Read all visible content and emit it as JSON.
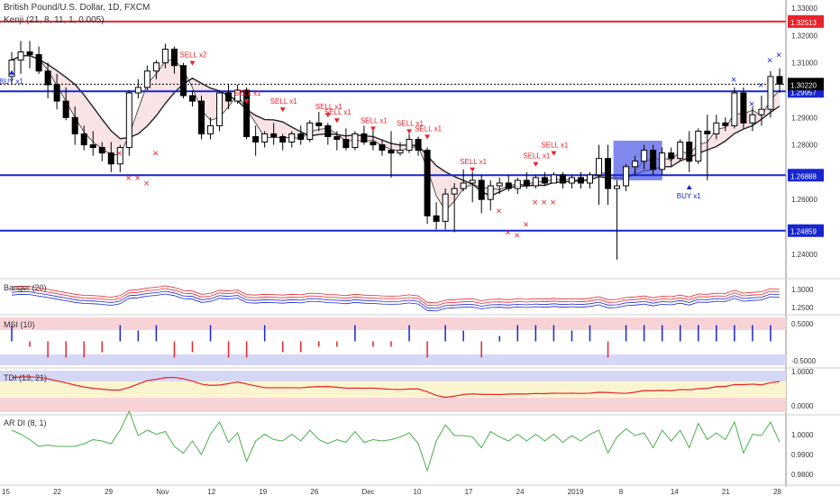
{
  "header": {
    "title": "British Pound/U.S. Dollar, 1D, FXCM",
    "indicator": "Kenji (21, 8, 11, 1, 0.005)"
  },
  "chart_data": {
    "type": "candlestick",
    "price_axis": {
      "ticks": [
        "1.33000",
        "1.32000",
        "1.31000",
        "1.29000",
        "1.28000",
        "1.26000",
        "1.24000"
      ],
      "range": [
        1.232,
        1.333
      ]
    },
    "current_price": "1.30220",
    "horizontal_lines": [
      {
        "label": "1.32513",
        "value": 1.32513,
        "color": "#e8232b"
      },
      {
        "label": "1.29957",
        "value": 1.29957,
        "color": "#1726cf"
      },
      {
        "label": "1.26888",
        "value": 1.26888,
        "color": "#1726cf"
      },
      {
        "label": "1.24859",
        "value": 1.24859,
        "color": "#1726cf"
      }
    ],
    "x_axis_labels": [
      "15",
      "22",
      "29",
      "Nov",
      "12",
      "19",
      "26",
      "Dec",
      "10",
      "17",
      "24",
      "2019",
      "8",
      "14",
      "21",
      "28"
    ],
    "candles": [
      {
        "o": 1.305,
        "h": 1.314,
        "l": 1.302,
        "c": 1.311
      },
      {
        "o": 1.311,
        "h": 1.318,
        "l": 1.306,
        "c": 1.314
      },
      {
        "o": 1.314,
        "h": 1.318,
        "l": 1.308,
        "c": 1.313
      },
      {
        "o": 1.313,
        "h": 1.316,
        "l": 1.306,
        "c": 1.307
      },
      {
        "o": 1.307,
        "h": 1.31,
        "l": 1.297,
        "c": 1.302
      },
      {
        "o": 1.302,
        "h": 1.306,
        "l": 1.293,
        "c": 1.296
      },
      {
        "o": 1.296,
        "h": 1.301,
        "l": 1.289,
        "c": 1.29
      },
      {
        "o": 1.29,
        "h": 1.294,
        "l": 1.28,
        "c": 1.284
      },
      {
        "o": 1.284,
        "h": 1.287,
        "l": 1.278,
        "c": 1.28
      },
      {
        "o": 1.28,
        "h": 1.285,
        "l": 1.276,
        "c": 1.279
      },
      {
        "o": 1.279,
        "h": 1.281,
        "l": 1.274,
        "c": 1.277
      },
      {
        "o": 1.277,
        "h": 1.281,
        "l": 1.27,
        "c": 1.273
      },
      {
        "o": 1.273,
        "h": 1.28,
        "l": 1.27,
        "c": 1.279
      },
      {
        "o": 1.279,
        "h": 1.3,
        "l": 1.276,
        "c": 1.299
      },
      {
        "o": 1.299,
        "h": 1.304,
        "l": 1.297,
        "c": 1.301
      },
      {
        "o": 1.301,
        "h": 1.309,
        "l": 1.3,
        "c": 1.307
      },
      {
        "o": 1.307,
        "h": 1.311,
        "l": 1.304,
        "c": 1.31
      },
      {
        "o": 1.31,
        "h": 1.317,
        "l": 1.308,
        "c": 1.315
      },
      {
        "o": 1.315,
        "h": 1.316,
        "l": 1.306,
        "c": 1.309
      },
      {
        "o": 1.309,
        "h": 1.31,
        "l": 1.297,
        "c": 1.298
      },
      {
        "o": 1.298,
        "h": 1.3,
        "l": 1.294,
        "c": 1.296
      },
      {
        "o": 1.296,
        "h": 1.298,
        "l": 1.282,
        "c": 1.284
      },
      {
        "o": 1.284,
        "h": 1.29,
        "l": 1.282,
        "c": 1.287
      },
      {
        "o": 1.287,
        "h": 1.3,
        "l": 1.285,
        "c": 1.299
      },
      {
        "o": 1.299,
        "h": 1.302,
        "l": 1.293,
        "c": 1.296
      },
      {
        "o": 1.296,
        "h": 1.302,
        "l": 1.295,
        "c": 1.3
      },
      {
        "o": 1.3,
        "h": 1.301,
        "l": 1.282,
        "c": 1.283
      },
      {
        "o": 1.283,
        "h": 1.287,
        "l": 1.276,
        "c": 1.281
      },
      {
        "o": 1.281,
        "h": 1.285,
        "l": 1.279,
        "c": 1.284
      },
      {
        "o": 1.284,
        "h": 1.288,
        "l": 1.28,
        "c": 1.283
      },
      {
        "o": 1.283,
        "h": 1.284,
        "l": 1.278,
        "c": 1.281
      },
      {
        "o": 1.281,
        "h": 1.285,
        "l": 1.279,
        "c": 1.284
      },
      {
        "o": 1.284,
        "h": 1.287,
        "l": 1.28,
        "c": 1.282
      },
      {
        "o": 1.282,
        "h": 1.289,
        "l": 1.281,
        "c": 1.288
      },
      {
        "o": 1.288,
        "h": 1.292,
        "l": 1.285,
        "c": 1.287
      },
      {
        "o": 1.287,
        "h": 1.288,
        "l": 1.28,
        "c": 1.283
      },
      {
        "o": 1.283,
        "h": 1.285,
        "l": 1.278,
        "c": 1.282
      },
      {
        "o": 1.282,
        "h": 1.286,
        "l": 1.278,
        "c": 1.279
      },
      {
        "o": 1.279,
        "h": 1.285,
        "l": 1.278,
        "c": 1.284
      },
      {
        "o": 1.284,
        "h": 1.287,
        "l": 1.28,
        "c": 1.281
      },
      {
        "o": 1.281,
        "h": 1.286,
        "l": 1.278,
        "c": 1.28
      },
      {
        "o": 1.28,
        "h": 1.282,
        "l": 1.276,
        "c": 1.278
      },
      {
        "o": 1.278,
        "h": 1.285,
        "l": 1.268,
        "c": 1.277
      },
      {
        "o": 1.277,
        "h": 1.281,
        "l": 1.276,
        "c": 1.278
      },
      {
        "o": 1.278,
        "h": 1.284,
        "l": 1.277,
        "c": 1.282
      },
      {
        "o": 1.282,
        "h": 1.283,
        "l": 1.276,
        "c": 1.278
      },
      {
        "o": 1.278,
        "h": 1.279,
        "l": 1.251,
        "c": 1.254
      },
      {
        "o": 1.254,
        "h": 1.259,
        "l": 1.249,
        "c": 1.252
      },
      {
        "o": 1.252,
        "h": 1.264,
        "l": 1.249,
        "c": 1.262
      },
      {
        "o": 1.262,
        "h": 1.266,
        "l": 1.248,
        "c": 1.264
      },
      {
        "o": 1.264,
        "h": 1.271,
        "l": 1.263,
        "c": 1.266
      },
      {
        "o": 1.266,
        "h": 1.27,
        "l": 1.259,
        "c": 1.267
      },
      {
        "o": 1.267,
        "h": 1.269,
        "l": 1.255,
        "c": 1.26
      },
      {
        "o": 1.26,
        "h": 1.267,
        "l": 1.256,
        "c": 1.265
      },
      {
        "o": 1.265,
        "h": 1.268,
        "l": 1.262,
        "c": 1.266
      },
      {
        "o": 1.266,
        "h": 1.269,
        "l": 1.263,
        "c": 1.264
      },
      {
        "o": 1.264,
        "h": 1.268,
        "l": 1.262,
        "c": 1.267
      },
      {
        "o": 1.267,
        "h": 1.27,
        "l": 1.264,
        "c": 1.265
      },
      {
        "o": 1.265,
        "h": 1.269,
        "l": 1.264,
        "c": 1.268
      },
      {
        "o": 1.268,
        "h": 1.27,
        "l": 1.265,
        "c": 1.266
      },
      {
        "o": 1.266,
        "h": 1.27,
        "l": 1.266,
        "c": 1.269
      },
      {
        "o": 1.269,
        "h": 1.27,
        "l": 1.264,
        "c": 1.266
      },
      {
        "o": 1.266,
        "h": 1.269,
        "l": 1.264,
        "c": 1.268
      },
      {
        "o": 1.268,
        "h": 1.27,
        "l": 1.264,
        "c": 1.266
      },
      {
        "o": 1.266,
        "h": 1.27,
        "l": 1.264,
        "c": 1.269
      },
      {
        "o": 1.269,
        "h": 1.28,
        "l": 1.258,
        "c": 1.275
      },
      {
        "o": 1.275,
        "h": 1.28,
        "l": 1.258,
        "c": 1.264
      },
      {
        "o": 1.264,
        "h": 1.267,
        "l": 1.238,
        "c": 1.265
      },
      {
        "o": 1.265,
        "h": 1.273,
        "l": 1.263,
        "c": 1.272
      },
      {
        "o": 1.272,
        "h": 1.276,
        "l": 1.269,
        "c": 1.274
      },
      {
        "o": 1.274,
        "h": 1.28,
        "l": 1.271,
        "c": 1.278
      },
      {
        "o": 1.278,
        "h": 1.28,
        "l": 1.269,
        "c": 1.271
      },
      {
        "o": 1.271,
        "h": 1.279,
        "l": 1.269,
        "c": 1.277
      },
      {
        "o": 1.277,
        "h": 1.279,
        "l": 1.272,
        "c": 1.275
      },
      {
        "o": 1.275,
        "h": 1.282,
        "l": 1.274,
        "c": 1.281
      },
      {
        "o": 1.281,
        "h": 1.285,
        "l": 1.27,
        "c": 1.274
      },
      {
        "o": 1.274,
        "h": 1.286,
        "l": 1.273,
        "c": 1.285
      },
      {
        "o": 1.285,
        "h": 1.291,
        "l": 1.267,
        "c": 1.284
      },
      {
        "o": 1.284,
        "h": 1.291,
        "l": 1.282,
        "c": 1.288
      },
      {
        "o": 1.288,
        "h": 1.29,
        "l": 1.285,
        "c": 1.287
      },
      {
        "o": 1.287,
        "h": 1.301,
        "l": 1.286,
        "c": 1.299
      },
      {
        "o": 1.299,
        "h": 1.301,
        "l": 1.286,
        "c": 1.288
      },
      {
        "o": 1.288,
        "h": 1.294,
        "l": 1.285,
        "c": 1.291
      },
      {
        "o": 1.291,
        "h": 1.298,
        "l": 1.287,
        "c": 1.293
      },
      {
        "o": 1.293,
        "h": 1.307,
        "l": 1.29,
        "c": 1.305
      },
      {
        "o": 1.305,
        "h": 1.308,
        "l": 1.299,
        "c": 1.3022
      }
    ],
    "signals": [
      {
        "text": "BUY x1",
        "bar": 0,
        "type": "buy",
        "price": 1.307
      },
      {
        "text": "SELL x2",
        "bar": 20,
        "type": "sell",
        "price": 1.312
      },
      {
        "text": "SELL x1",
        "bar": 26,
        "type": "sell",
        "price": 1.298
      },
      {
        "text": "SELL x1",
        "bar": 30,
        "type": "sell",
        "price": 1.295
      },
      {
        "text": "SELL x1",
        "bar": 35,
        "type": "sell",
        "price": 1.293
      },
      {
        "text": "SELL x1",
        "bar": 36,
        "type": "sell",
        "price": 1.291
      },
      {
        "text": "SELL x1",
        "bar": 40,
        "type": "sell",
        "price": 1.288
      },
      {
        "text": "SELL x1",
        "bar": 44,
        "type": "sell",
        "price": 1.287
      },
      {
        "text": "SELL x1",
        "bar": 46,
        "type": "sell",
        "price": 1.285
      },
      {
        "text": "SELL x1",
        "bar": 51,
        "type": "sell",
        "price": 1.273
      },
      {
        "text": "SELL x1",
        "bar": 58,
        "type": "sell",
        "price": 1.275
      },
      {
        "text": "SELL x1",
        "bar": 60,
        "type": "sell",
        "price": 1.279
      },
      {
        "text": "BUY x1",
        "bar": 75,
        "type": "buy",
        "price": 1.265
      }
    ],
    "crosses": [
      {
        "bar": 12,
        "price": 1.277,
        "color": "#e8232b"
      },
      {
        "bar": 13,
        "price": 1.268,
        "color": "#e8232b"
      },
      {
        "bar": 14,
        "price": 1.268,
        "color": "#e8232b"
      },
      {
        "bar": 15,
        "price": 1.266,
        "color": "#e8232b"
      },
      {
        "bar": 16,
        "price": 1.277,
        "color": "#e8232b"
      },
      {
        "bar": 54,
        "price": 1.256,
        "color": "#e8232b"
      },
      {
        "bar": 55,
        "price": 1.248,
        "color": "#e8232b"
      },
      {
        "bar": 56,
        "price": 1.247,
        "color": "#e8232b"
      },
      {
        "bar": 57,
        "price": 1.251,
        "color": "#e8232b"
      },
      {
        "bar": 58,
        "price": 1.259,
        "color": "#e8232b"
      },
      {
        "bar": 59,
        "price": 1.259,
        "color": "#e8232b"
      },
      {
        "bar": 60,
        "price": 1.259,
        "color": "#e8232b"
      },
      {
        "bar": 80,
        "price": 1.304,
        "color": "#1726cf"
      },
      {
        "bar": 82,
        "price": 1.295,
        "color": "#1726cf"
      },
      {
        "bar": 83,
        "price": 1.302,
        "color": "#1726cf"
      },
      {
        "bar": 84,
        "price": 1.311,
        "color": "#1726cf"
      },
      {
        "bar": 85,
        "price": 1.313,
        "color": "#1726cf"
      }
    ]
  },
  "panes": [
    {
      "label": "Banger (20)",
      "ticks": [
        "1.3000",
        "1.2500"
      ]
    },
    {
      "label": "MSI (10)",
      "ticks": [
        "0.5000",
        "-0.5000"
      ]
    },
    {
      "label": "TDI (13, 21)",
      "ticks": [
        "1.0000",
        "0.0000"
      ]
    },
    {
      "label": "AR DI (8, 1)",
      "ticks": [
        "1.0000",
        "0.9900",
        "0.9800"
      ]
    }
  ],
  "colors": {
    "up": "#ffffff",
    "down": "#000000",
    "buy": "#1726cf",
    "sell": "#e8232b",
    "cloud_bear": "#f3d0d4",
    "cloud_bull": "#d6dbf5",
    "highlight_box": "#5560e8"
  }
}
